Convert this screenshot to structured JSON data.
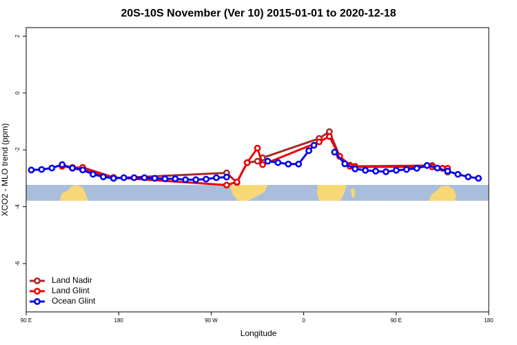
{
  "chart_data": {
    "type": "line",
    "title": "20S-10S November (Ver 10)   2015-01-01 to 2020-12-18",
    "xlabel": "Longitude",
    "ylabel": "XCO2 - MLO trend (ppm)",
    "xlim": [
      90,
      540
    ],
    "ylim": [
      -7.7,
      2.3
    ],
    "xticks": [
      {
        "value": 90,
        "label": "90 E"
      },
      {
        "value": 180,
        "label": "180"
      },
      {
        "value": 270,
        "label": "90 W"
      },
      {
        "value": 360,
        "label": "0"
      },
      {
        "value": 450,
        "label": "90 E"
      },
      {
        "value": 540,
        "label": "180"
      }
    ],
    "yticks": [
      -6,
      -4,
      -2,
      0,
      2
    ],
    "legend": "bottom-left",
    "series": [
      {
        "name": "Land Nadir",
        "color": "#a52a2a",
        "x": [
          125,
          135,
          145,
          175,
          285,
          295,
          305,
          315,
          320,
          375,
          385,
          395,
          405,
          410,
          485,
          495,
          500
        ],
        "values": [
          -2.56,
          -2.65,
          -2.7,
          -3.0,
          -2.81,
          -3.15,
          -2.45,
          -2.4,
          -2.28,
          -1.6,
          -1.36,
          -2.23,
          -2.54,
          -2.58,
          -2.55,
          -2.65,
          -2.78
        ]
      },
      {
        "name": "Land Glint",
        "color": "#ee0000",
        "x": [
          125,
          135,
          145,
          175,
          285,
          295,
          305,
          315,
          320,
          375,
          385,
          395,
          405,
          410,
          485,
          495,
          500
        ],
        "values": [
          -2.58,
          -2.62,
          -2.62,
          -2.97,
          -3.24,
          -3.13,
          -2.45,
          -1.94,
          -2.52,
          -1.72,
          -1.53,
          -2.23,
          -2.58,
          -2.6,
          -2.6,
          -2.65,
          -2.65
        ]
      },
      {
        "name": "Ocean Glint",
        "color": "#0000ee",
        "x": [
          95,
          105,
          115,
          125,
          135,
          145,
          155,
          165,
          175,
          185,
          195,
          205,
          215,
          225,
          235,
          245,
          255,
          265,
          275,
          285,
          295,
          325,
          335,
          345,
          355,
          365,
          370,
          380,
          390,
          400,
          410,
          420,
          430,
          440,
          450,
          460,
          470,
          480,
          490,
          500,
          510,
          520,
          530
        ],
        "values": [
          -2.71,
          -2.69,
          -2.64,
          -2.52,
          -2.64,
          -2.71,
          -2.86,
          -2.95,
          -3.0,
          -2.98,
          -2.98,
          -2.98,
          -3.0,
          -3.02,
          -3.02,
          -3.05,
          -3.05,
          -3.03,
          -2.98,
          -2.96,
          null,
          -2.4,
          -2.45,
          -2.5,
          -2.5,
          -2.03,
          -1.84,
          null,
          -2.08,
          -2.49,
          -2.67,
          -2.72,
          -2.75,
          -2.77,
          -2.72,
          -2.69,
          -2.65,
          -2.55,
          -2.64,
          -2.75,
          -2.86,
          -2.95,
          -3.0
        ]
      }
    ]
  }
}
